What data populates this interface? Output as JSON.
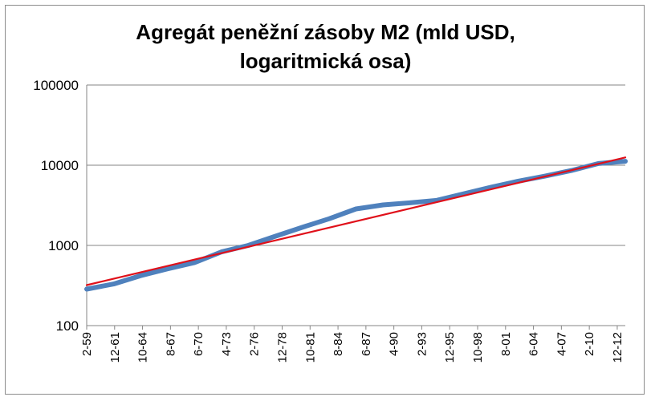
{
  "chart_data": {
    "type": "line",
    "title_lines": [
      "Agregát peněžní zásoby M2 (mld USD,",
      "logaritmická osa)"
    ],
    "y_scale": "log",
    "ylim": [
      100,
      100000
    ],
    "y_ticks": [
      "100",
      "1000",
      "10000",
      "100000"
    ],
    "y_tick_values": [
      100,
      1000,
      10000,
      100000
    ],
    "x_ticks": [
      "2-59",
      "12-61",
      "10-64",
      "8-67",
      "6-70",
      "4-73",
      "2-76",
      "12-78",
      "10-81",
      "8-84",
      "6-87",
      "4-90",
      "2-93",
      "12-95",
      "10-98",
      "8-01",
      "6-04",
      "4-07",
      "2-10",
      "12-12"
    ],
    "grid": "horizontal",
    "legend": "none",
    "series": [
      {
        "values": [
          285,
          330,
          420,
          510,
          610,
          830,
          1000,
          1300,
          1680,
          2150,
          2850,
          3200,
          3400,
          3650,
          4400,
          5300,
          6300,
          7300,
          8600,
          10500,
          11200
        ],
        "color": "#4f81bd",
        "style": "thick"
      },
      {
        "values": [
          320,
          12500
        ],
        "color": "#e0101a",
        "style": "trend"
      }
    ]
  }
}
